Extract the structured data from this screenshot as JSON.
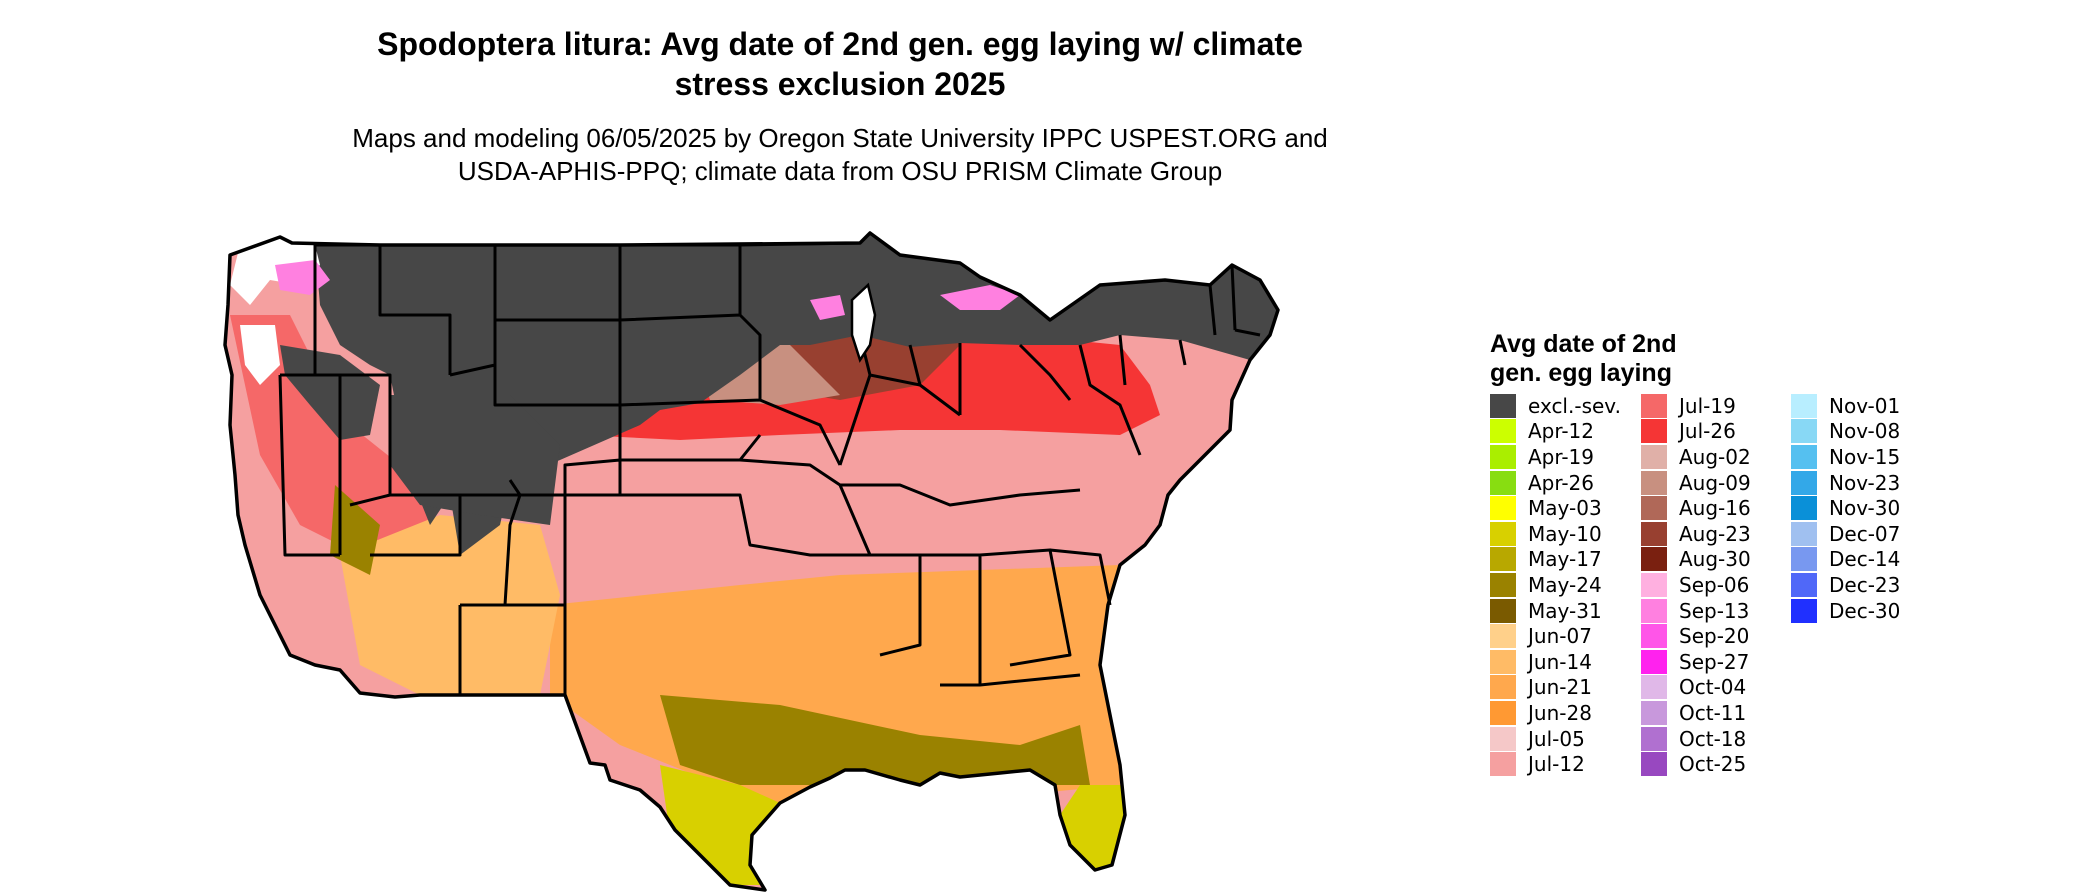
{
  "header": {
    "title_line1": "Spodoptera litura: Avg date of 2nd gen. egg laying w/ climate",
    "title_line2": "stress exclusion 2025",
    "subtitle_line1": "Maps and modeling 06/05/2025 by Oregon State University IPPC USPEST.ORG and",
    "subtitle_line2": "USDA-APHIS-PPQ; climate data from OSU PRISM Climate Group"
  },
  "legend": {
    "title_line1": "Avg date of 2nd",
    "title_line2": "gen. egg laying",
    "columns": [
      [
        {
          "label": "excl.-sev.",
          "color": "#474747"
        },
        {
          "label": "Apr-12",
          "color": "#ccff00"
        },
        {
          "label": "Apr-19",
          "color": "#aaee00"
        },
        {
          "label": "Apr-26",
          "color": "#88dd11"
        },
        {
          "label": "May-03",
          "color": "#ffff00"
        },
        {
          "label": "May-10",
          "color": "#d8d000"
        },
        {
          "label": "May-17",
          "color": "#b8a800"
        },
        {
          "label": "May-24",
          "color": "#9a8200"
        },
        {
          "label": "May-31",
          "color": "#7a5a00"
        },
        {
          "label": "Jun-07",
          "color": "#ffd08a"
        },
        {
          "label": "Jun-14",
          "color": "#ffbb66"
        },
        {
          "label": "Jun-21",
          "color": "#ffa84d"
        },
        {
          "label": "Jun-28",
          "color": "#ff9933"
        },
        {
          "label": "Jul-05",
          "color": "#f5c8c8"
        },
        {
          "label": "Jul-12",
          "color": "#f5a0a0"
        }
      ],
      [
        {
          "label": "Jul-19",
          "color": "#f56868"
        },
        {
          "label": "Jul-26",
          "color": "#f53535"
        },
        {
          "label": "Aug-02",
          "color": "#e0b0a8"
        },
        {
          "label": "Aug-09",
          "color": "#c89080"
        },
        {
          "label": "Aug-16",
          "color": "#b06858"
        },
        {
          "label": "Aug-23",
          "color": "#984030"
        },
        {
          "label": "Aug-30",
          "color": "#7a2010"
        },
        {
          "label": "Sep-06",
          "color": "#ffb0e0"
        },
        {
          "label": "Sep-13",
          "color": "#ff80e0"
        },
        {
          "label": "Sep-20",
          "color": "#ff55e8"
        },
        {
          "label": "Sep-27",
          "color": "#ff22ee"
        },
        {
          "label": "Oct-04",
          "color": "#e0b8e8"
        },
        {
          "label": "Oct-11",
          "color": "#c898dc"
        },
        {
          "label": "Oct-18",
          "color": "#b070d0"
        },
        {
          "label": "Oct-25",
          "color": "#9848c0"
        }
      ],
      [
        {
          "label": "Nov-01",
          "color": "#b8eeff"
        },
        {
          "label": "Nov-08",
          "color": "#88d8f5"
        },
        {
          "label": "Nov-15",
          "color": "#55c0f0"
        },
        {
          "label": "Nov-23",
          "color": "#33a8e8"
        },
        {
          "label": "Nov-30",
          "color": "#0a90d8"
        },
        {
          "label": "Dec-07",
          "color": "#a0c0f0"
        },
        {
          "label": "Dec-14",
          "color": "#7898f0"
        },
        {
          "label": "Dec-23",
          "color": "#5068f8"
        },
        {
          "label": "Dec-30",
          "color": "#2030ff"
        }
      ]
    ]
  }
}
